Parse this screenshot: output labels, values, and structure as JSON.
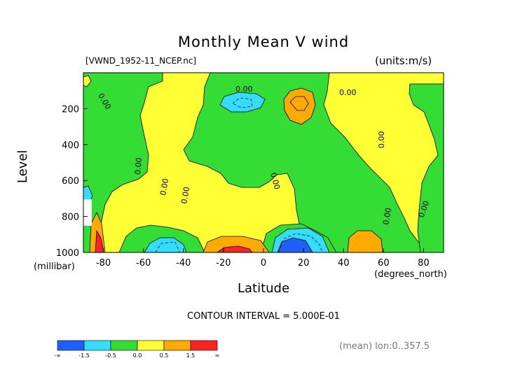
{
  "chart_data": {
    "type": "heatmap",
    "title": "Monthly Mean V wind",
    "file_label": "[VWND_1952-11_NCEP.nc]",
    "units_label": "(units:m/s)",
    "xlabel": "Latitude",
    "x_unit": "(degrees_north)",
    "ylabel": "Level",
    "y_unit": "(millibar)",
    "x_ticks": [
      "-80",
      "-60",
      "-40",
      "-20",
      "0",
      "20",
      "40",
      "60",
      "80"
    ],
    "y_ticks": [
      "200",
      "400",
      "600",
      "800",
      "1000"
    ],
    "xlim": [
      -90,
      90
    ],
    "ylim": [
      1000,
      0
    ],
    "contour_interval_text": "CONTOUR INTERVAL = 5.000E-01",
    "contour_labels": [
      "0.00",
      "0.00",
      "0.00",
      "0.00",
      "0.00",
      "0.00",
      "0.00",
      "0.00",
      "0.00",
      "0.00"
    ],
    "colorbar": {
      "colors": [
        "#1f5fff",
        "#33ddff",
        "#33dd33",
        "#ffff33",
        "#ffaa00",
        "#ff2222"
      ],
      "labels": [
        "-∞",
        "-1.5",
        "-0.5",
        "0.0",
        "0.5",
        "1.5",
        "∞"
      ]
    },
    "footer_text": "(mean) lon:0..357.5"
  }
}
